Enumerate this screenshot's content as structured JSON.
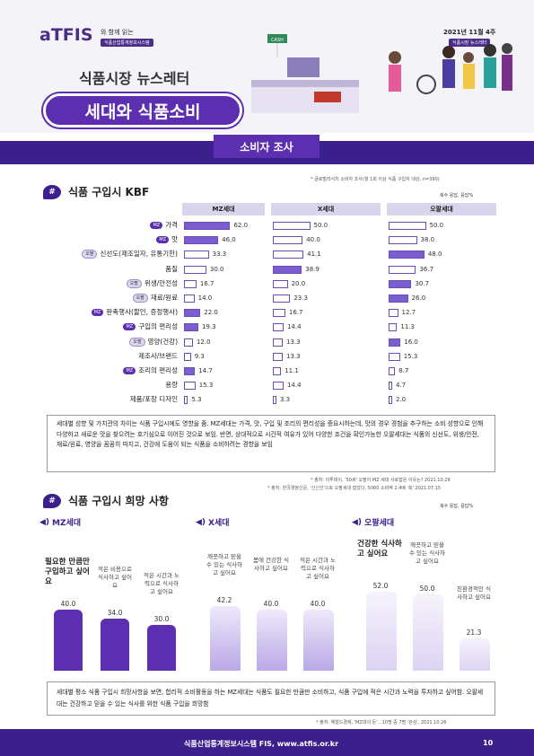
{
  "header": {
    "logo": "aTFIS",
    "logo_tagline": "와 함께 읽는",
    "logo_sub": "식품산업통계정보시스템",
    "date": "2021년 11월 4주",
    "date_sub": "식품시장 뉴스레터",
    "newsletter_title": "식품시장 뉴스레터",
    "issue_title": "세대와 식품소비",
    "cash_sign": "CASH"
  },
  "banner": {
    "label": "소비자 조사"
  },
  "survey_note": "* 글로벌리서치 소비자 조사(월 1회 이상 식품 구입자 대상, n=390)",
  "kbf": {
    "title": "식품 구입시 KBF",
    "multi": "복수 응답, 응답%",
    "columns": [
      "MZ세대",
      "X세대",
      "오팔세대"
    ],
    "rows": [
      {
        "label": "가격",
        "tags": [
          "MZ"
        ],
        "values": [
          62.0,
          50.0,
          50.0
        ]
      },
      {
        "label": "맛",
        "tags": [
          "MZ"
        ],
        "values": [
          46.0,
          40.0,
          38.0
        ]
      },
      {
        "label": "신선도(제조일자, 유통기한)",
        "tags": [
          "오팔"
        ],
        "values": [
          33.3,
          41.1,
          48.0
        ]
      },
      {
        "label": "품질",
        "tags": [],
        "values": [
          30.0,
          38.9,
          36.7
        ]
      },
      {
        "label": "위생/안전성",
        "tags": [
          "오팔"
        ],
        "values": [
          16.7,
          20.0,
          30.7
        ]
      },
      {
        "label": "재료/원료",
        "tags": [
          "오팔"
        ],
        "values": [
          14.0,
          23.3,
          26.0
        ]
      },
      {
        "label": "판촉행사(할인, 증정행사)",
        "tags": [
          "MZ"
        ],
        "values": [
          22.0,
          16.7,
          12.7
        ]
      },
      {
        "label": "구입의 편리성",
        "tags": [
          "MZ"
        ],
        "values": [
          19.3,
          14.4,
          11.3
        ]
      },
      {
        "label": "영양(건강)",
        "tags": [
          "오팔"
        ],
        "values": [
          12.0,
          13.3,
          16.0
        ]
      },
      {
        "label": "제조사/브랜드",
        "tags": [],
        "values": [
          9.3,
          13.3,
          15.3
        ]
      },
      {
        "label": "조리의 편리성",
        "tags": [
          "MZ"
        ],
        "values": [
          14.7,
          11.1,
          8.7
        ]
      },
      {
        "label": "용량",
        "tags": [],
        "values": [
          15.3,
          14.4,
          4.7
        ]
      },
      {
        "label": "제품/포장 디자인",
        "tags": [],
        "values": [
          5.3,
          3.3,
          2.0
        ]
      }
    ],
    "summary": "세대별 성향 및 가치관의 차이는 식품 구입시에도 영향을 줌. MZ세대는 가격, 맛, 구입 및 조리의 편리성을 중요시하는데, 맛의 경우 경험을 추구하는 소비 성향으로 인해 다양하고 새로운 맛을 찾으려는 호기심으로 이어진 것으로 보임. 반면, 상대적으로 시간적 여유가 있어 다양한 조건을 확인가능한 오팔세대는 식품의 신선도, 위생/안전, 재료/원료, 영양을 꼼꼼히 따지고, 건강에 도움이 되는 식품을 소비하려는 경향을 보임",
    "source1": "* 출처: 이투데이, '50세' 오팔이 MZ 세대 사로잡은 이유는? 2021.10.29",
    "source2": "* 출처: 한국경정신문, '신신선'으로 오팔세대 잡았다, 5060 소비액 2.4배 '쑥' 2021.07.15"
  },
  "wish": {
    "title": "식품 구입시 희망 사항",
    "multi": "복수 응답, 응답%",
    "groups": [
      {
        "name": "MZ세대",
        "items": [
          {
            "text": "필요한 만큼만 구입하고 싶어요",
            "value": 40.0,
            "big": true
          },
          {
            "text": "적은 비용으로 식사하고 싶어요",
            "value": 34.0,
            "big": false
          },
          {
            "text": "적은 시간과 노력으로 식사하고 싶어요",
            "value": 30.0,
            "big": false
          }
        ]
      },
      {
        "name": "X세대",
        "items": [
          {
            "text": "깨끗하고 믿을 수 있는 식사하고 싶어요",
            "value": 42.2,
            "big": false
          },
          {
            "text": "몸에 건강한 식사하고 싶어요",
            "value": 40.0,
            "big": false
          },
          {
            "text": "적은 시간과 노력으로 식사하고 싶어요",
            "value": 40.0,
            "big": false
          }
        ]
      },
      {
        "name": "오팔세대",
        "items": [
          {
            "text": "건강한 식사하고 싶어요",
            "value": 52.0,
            "big": true
          },
          {
            "text": "깨끗하고 믿을 수 있는 식사하고 싶어요",
            "value": 50.0,
            "big": false
          },
          {
            "text": "친환경적인 식사하고 싶어요",
            "value": 21.3,
            "big": false
          }
        ]
      }
    ],
    "summary": "세대별 평소 식품 구입시 희망사항을 보면, 합리적 소비활동을 하는 MZ세대는 식품도 필요한 만큼만 소비하고, 식품 구입에 적은 시간과 노력을 투자하고 싶어함. 오팔세대는 건강하고 믿을 수 있는 식사를 위한 식품 구입을 희망함",
    "source": "* 출처: 헤럴드경제, 'MZ대의 돈'…10명 중 7명 '관심', 2021.10.26"
  },
  "footer": {
    "text": "식품산업통계정보시스템 FIS, www.atfis.or.kr",
    "page": "10"
  },
  "colors": {
    "primary": "#3b1f8c",
    "accent": "#5b2fb0",
    "bar_highlight": "#7b5fd1"
  }
}
